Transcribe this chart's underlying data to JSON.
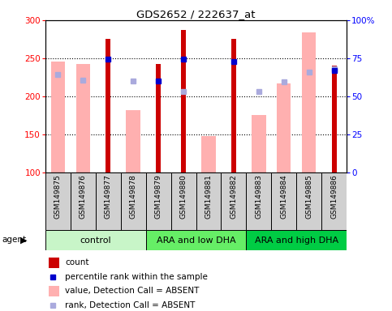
{
  "title": "GDS2652 / 222637_at",
  "samples": [
    "GSM149875",
    "GSM149876",
    "GSM149877",
    "GSM149878",
    "GSM149879",
    "GSM149880",
    "GSM149881",
    "GSM149882",
    "GSM149883",
    "GSM149884",
    "GSM149885",
    "GSM149886"
  ],
  "count_values": [
    null,
    null,
    275,
    null,
    243,
    287,
    null,
    276,
    null,
    null,
    null,
    240
  ],
  "percentile_rank": [
    null,
    null,
    249,
    null,
    220,
    249,
    null,
    246,
    null,
    null,
    null,
    234
  ],
  "absent_value": [
    246,
    243,
    null,
    182,
    null,
    null,
    148,
    null,
    176,
    217,
    284,
    null
  ],
  "absent_rank": [
    229,
    221,
    null,
    220,
    null,
    206,
    null,
    null,
    206,
    219,
    232,
    236
  ],
  "groups": [
    {
      "label": "control",
      "start": 0,
      "end": 4,
      "color": "#c8f5c8"
    },
    {
      "label": "ARA and low DHA",
      "start": 4,
      "end": 8,
      "color": "#66ee66"
    },
    {
      "label": "ARA and high DHA",
      "start": 8,
      "end": 12,
      "color": "#00cc44"
    }
  ],
  "ylim": [
    100,
    300
  ],
  "y2lim": [
    0,
    100
  ],
  "yticks": [
    100,
    150,
    200,
    250,
    300
  ],
  "y2ticks": [
    0,
    25,
    50,
    75,
    100
  ],
  "count_color": "#cc0000",
  "percentile_color": "#0000cc",
  "absent_value_color": "#ffb0b0",
  "absent_rank_color": "#aaaadd",
  "sample_box_color": "#d0d0d0",
  "legend_items": [
    {
      "color": "#cc0000",
      "type": "rect",
      "label": "count"
    },
    {
      "color": "#0000cc",
      "type": "square",
      "label": "percentile rank within the sample"
    },
    {
      "color": "#ffb0b0",
      "type": "rect",
      "label": "value, Detection Call = ABSENT"
    },
    {
      "color": "#aaaadd",
      "type": "square",
      "label": "rank, Detection Call = ABSENT"
    }
  ]
}
